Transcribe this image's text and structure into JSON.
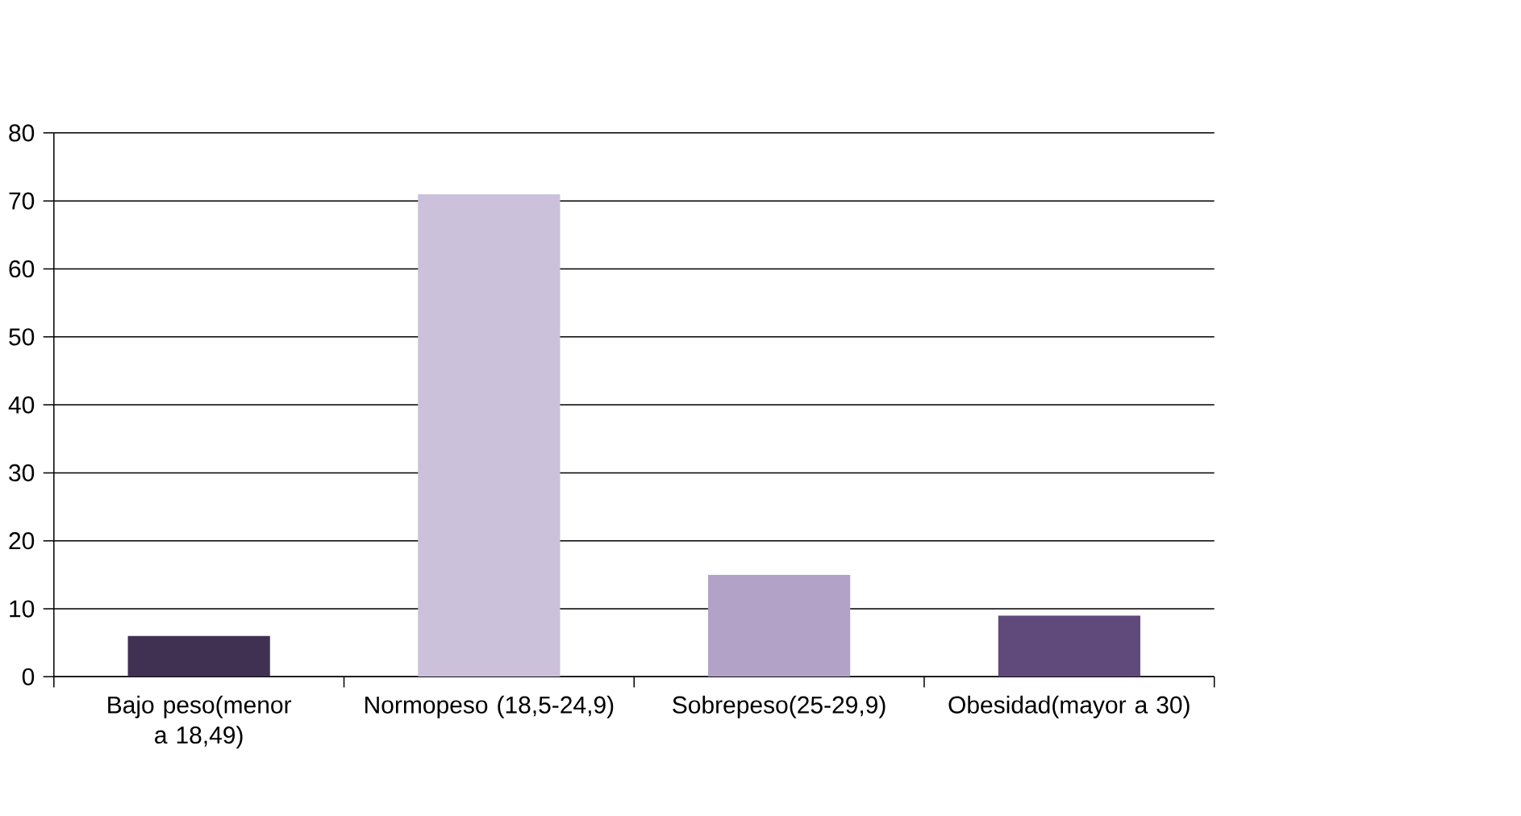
{
  "chart_data": {
    "type": "bar",
    "categories": [
      "Bajo peso(menor a 18,49)",
      "Normopeso (18,5-24,9)",
      "Sobrepeso(25-29,9)",
      "Obesidad(mayor a 30)"
    ],
    "values": [
      6,
      71,
      15,
      9
    ],
    "colors": [
      "#403152",
      "#ccc1da",
      "#b3a2c7",
      "#604a7b"
    ],
    "ylim": [
      0,
      80
    ],
    "yticks": [
      0,
      10,
      20,
      30,
      40,
      50,
      60,
      70,
      80
    ],
    "grid": "y"
  }
}
